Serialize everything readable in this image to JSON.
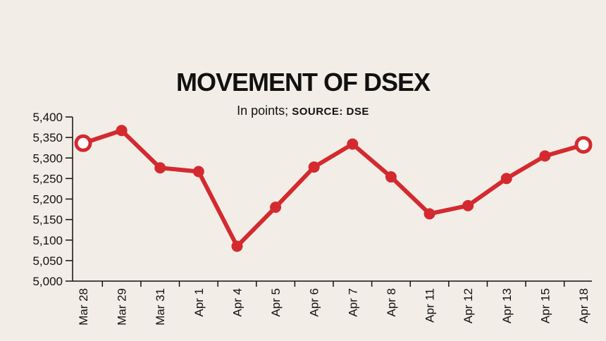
{
  "colors": {
    "background": "#f2eee7",
    "line": "#d42a2f",
    "text": "#111111",
    "marker_fill_open": "#ffffff"
  },
  "chart_data": {
    "type": "line",
    "title": "MOVEMENT OF DSEX",
    "subtitle_prefix": "In points;",
    "subtitle_source": "SOURCE: DSE",
    "xlabel": "",
    "ylabel": "",
    "ylim": [
      5000,
      5400
    ],
    "yticks": [
      5000,
      5050,
      5100,
      5150,
      5200,
      5250,
      5300,
      5350,
      5400
    ],
    "ytick_labels": [
      "5,000",
      "5,050",
      "5,100",
      "5,150",
      "5,200",
      "5,250",
      "5,300",
      "5,350",
      "5,400"
    ],
    "categories": [
      "Mar 28",
      "Mar 29",
      "Mar 31",
      "Apr 1",
      "Apr 4",
      "Apr 5",
      "Apr 6",
      "Apr 7",
      "Apr 8",
      "Apr 11",
      "Apr 12",
      "Apr 13",
      "Apr 15",
      "Apr 18"
    ],
    "series": [
      {
        "values": [
          5336,
          5367,
          5276,
          5267,
          5085,
          5180,
          5278,
          5334,
          5254,
          5164,
          5184,
          5250,
          5305,
          5332
        ],
        "open_markers": [
          0,
          13
        ]
      }
    ],
    "grid": false,
    "legend": "none"
  }
}
